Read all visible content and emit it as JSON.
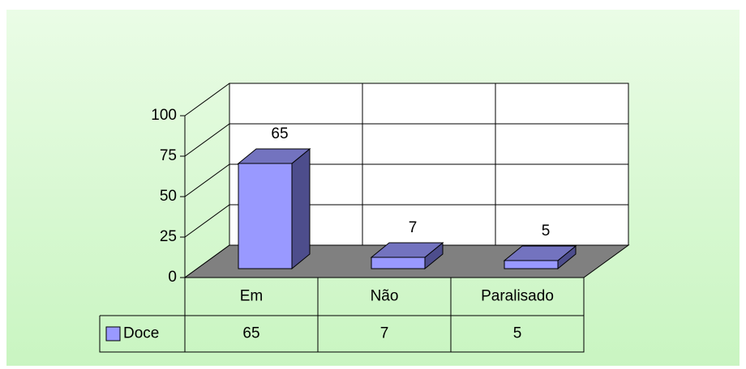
{
  "chart_data": {
    "type": "bar",
    "categories": [
      "Em",
      "Não",
      "Paralisado"
    ],
    "series": [
      {
        "name": "Doce",
        "color": "#9999ff",
        "values": [
          65,
          7,
          5
        ]
      }
    ],
    "ylim": [
      0,
      100
    ],
    "yticks": [
      0,
      25,
      50,
      75,
      100
    ],
    "grid": true
  }
}
